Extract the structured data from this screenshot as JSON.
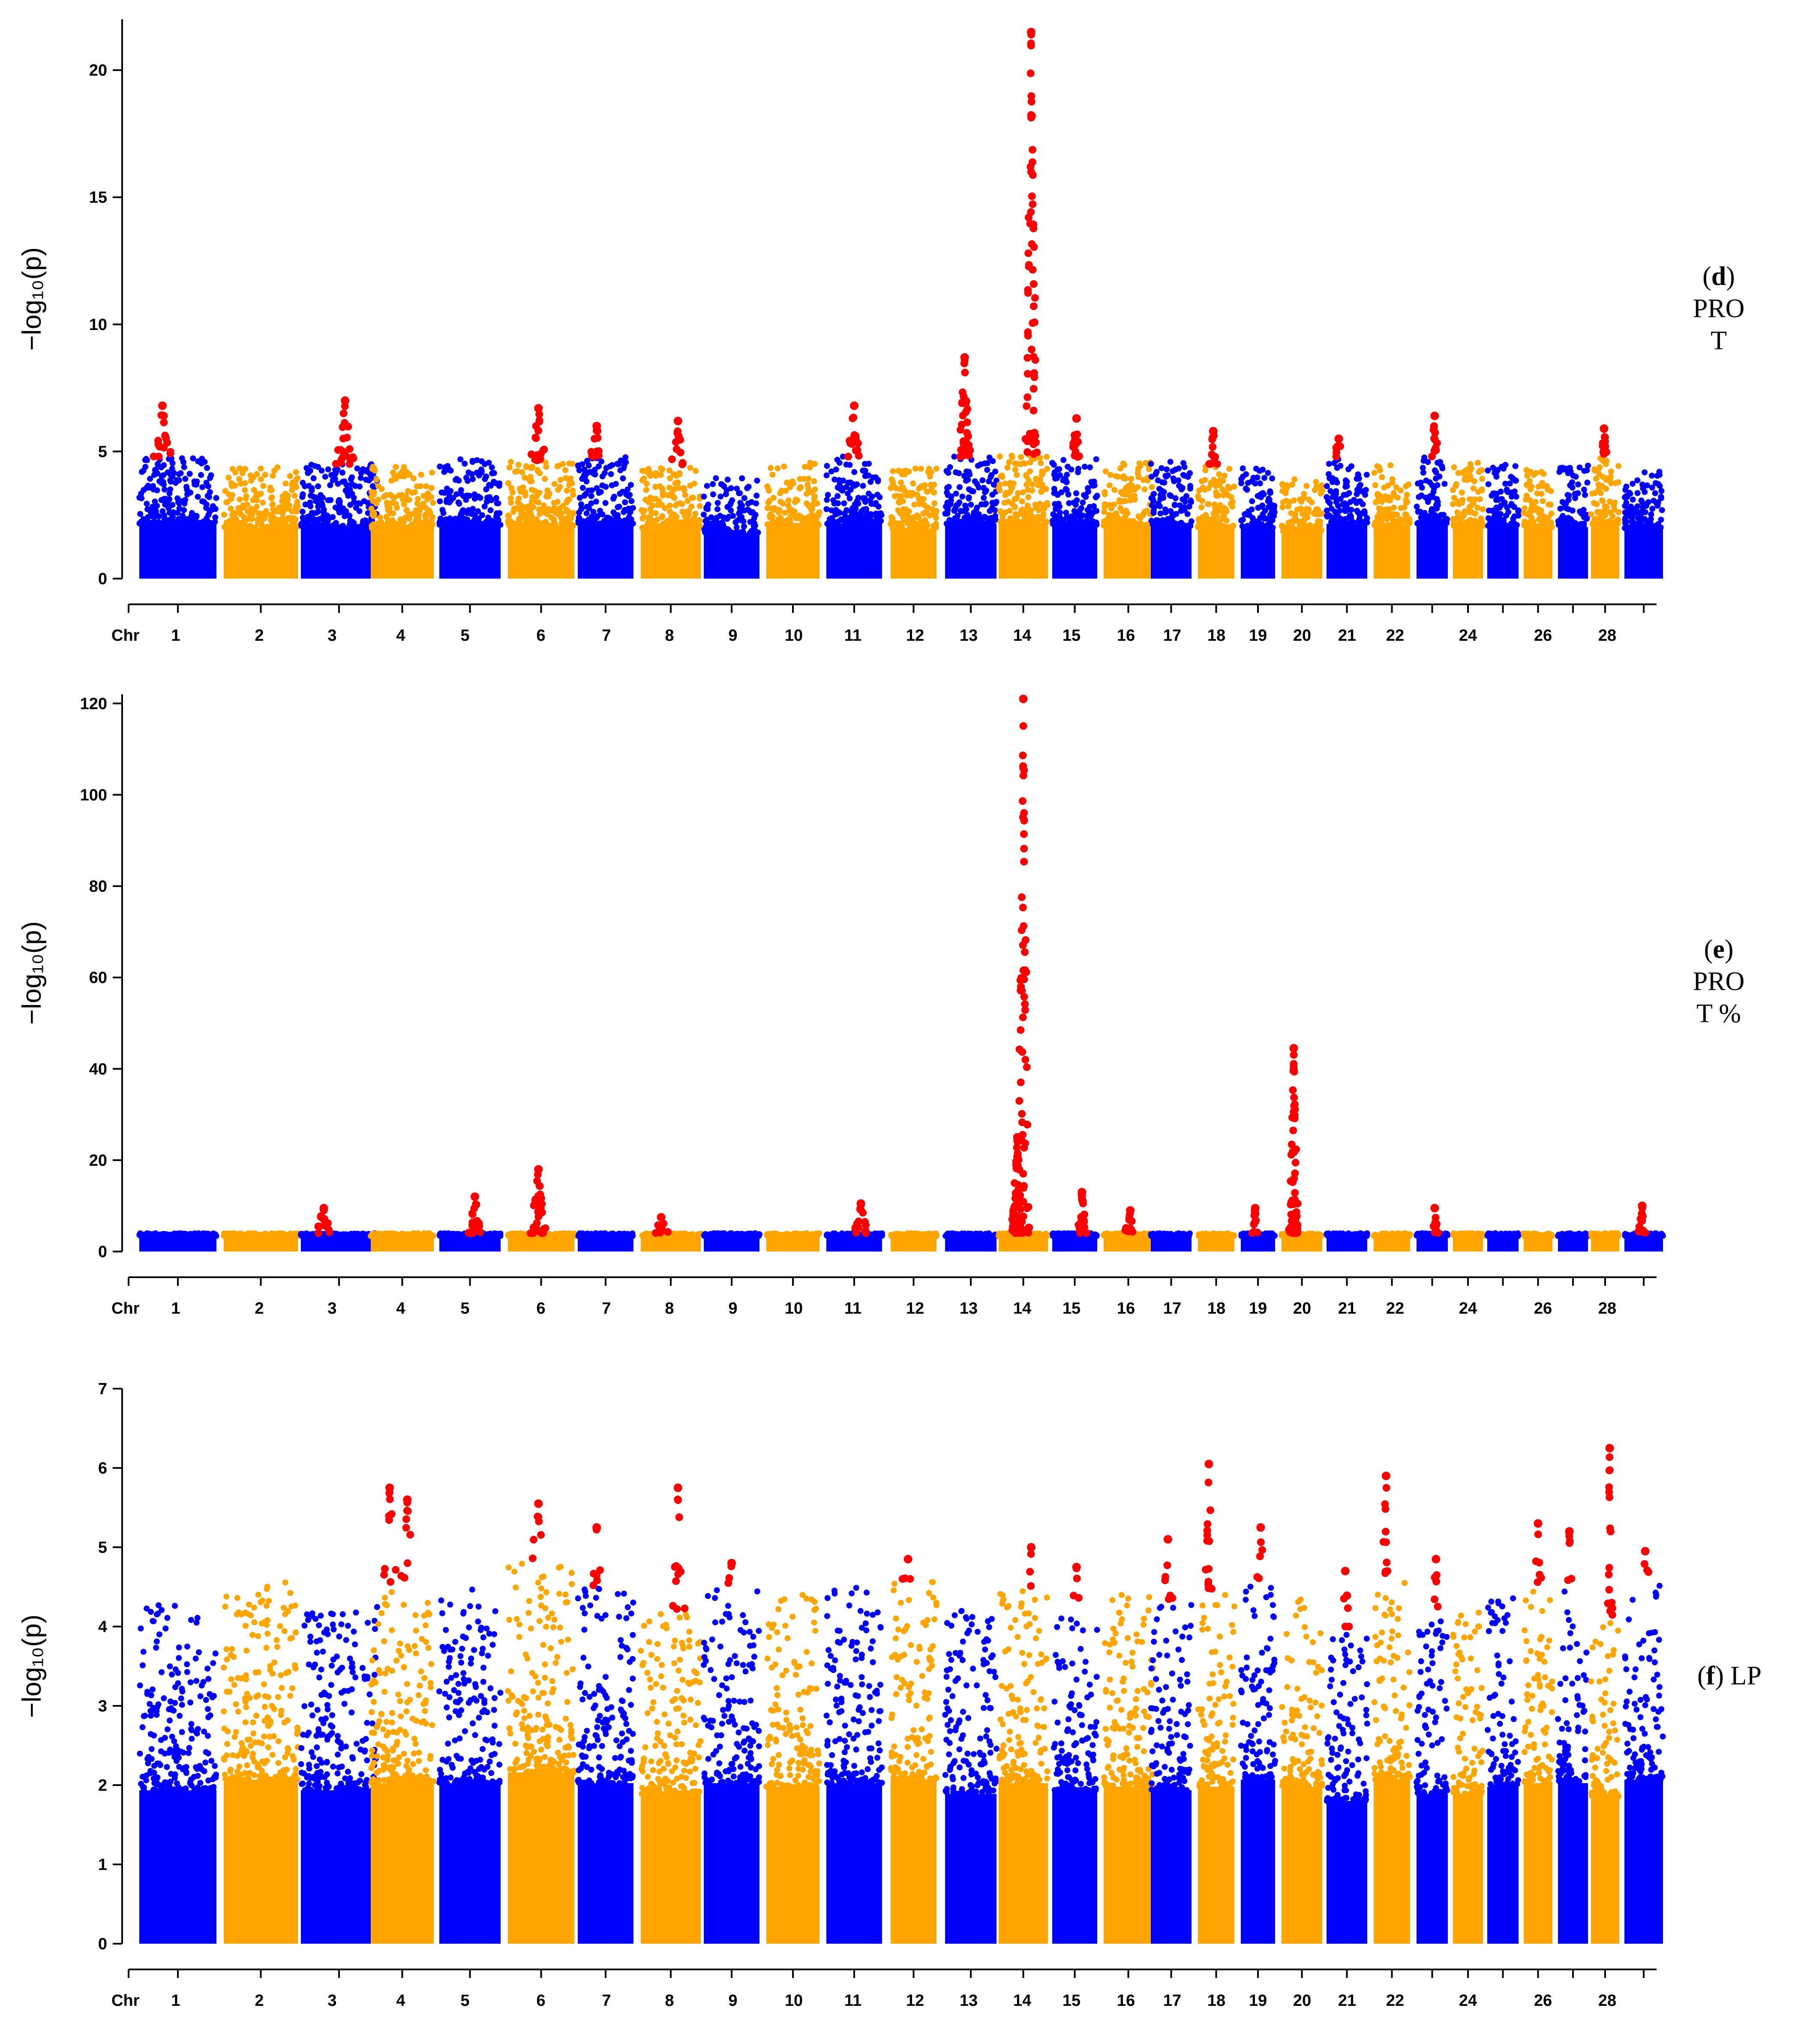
{
  "chart_data": [
    {
      "type": "scatter",
      "subtype": "manhattan",
      "panel": "d",
      "label_letter": "d",
      "label_lines": [
        "PRO",
        "T"
      ],
      "ylabel": "−log₁₀(p)",
      "xlabel_prefix": "Chr",
      "ylim": [
        0,
        22
      ],
      "yticks": [
        0,
        5,
        10,
        15,
        20
      ],
      "xtick_labels": [
        "1",
        "2",
        "3",
        "4",
        "5",
        "6",
        "7",
        "8",
        "9",
        "10",
        "11",
        "12",
        "13",
        "14",
        "15",
        "16",
        "17",
        "18",
        "19",
        "20",
        "21",
        "22",
        "24",
        "26",
        "28"
      ],
      "chromosome_max": [
        4.8,
        4.4,
        4.5,
        4.4,
        4.7,
        4.6,
        4.8,
        4.4,
        4.0,
        4.6,
        4.8,
        4.4,
        4.8,
        4.9,
        4.7,
        4.6,
        4.6,
        4.5,
        4.4,
        4.1,
        4.8,
        4.5,
        4.8,
        4.6,
        4.6,
        4.5,
        4.5,
        4.8,
        4.4
      ],
      "significant_peaks": [
        {
          "chr": 1,
          "value": 6.8
        },
        {
          "chr": 3,
          "value": 7.0
        },
        {
          "chr": 6,
          "value": 6.7
        },
        {
          "chr": 7,
          "value": 6.0
        },
        {
          "chr": 8,
          "value": 6.2
        },
        {
          "chr": 11,
          "value": 6.8
        },
        {
          "chr": 13,
          "value": 8.7
        },
        {
          "chr": 14,
          "value": 21.5
        },
        {
          "chr": 15,
          "value": 6.3
        },
        {
          "chr": 18,
          "value": 5.8
        },
        {
          "chr": 21,
          "value": 5.5
        },
        {
          "chr": 23,
          "value": 6.4
        },
        {
          "chr": 28,
          "value": 5.9
        }
      ],
      "colors": {
        "odd": "#0000FF",
        "even": "#FFA500",
        "significant": "#FF0000"
      }
    },
    {
      "type": "scatter",
      "subtype": "manhattan",
      "panel": "e",
      "label_letter": "e",
      "label_lines": [
        "PRO",
        "T %"
      ],
      "ylabel": "−log₁₀(p)",
      "xlabel_prefix": "Chr",
      "ylim": [
        0,
        122
      ],
      "yticks": [
        0,
        20,
        40,
        60,
        80,
        100,
        120
      ],
      "xtick_labels": [
        "1",
        "2",
        "3",
        "4",
        "5",
        "6",
        "7",
        "8",
        "9",
        "10",
        "11",
        "12",
        "13",
        "14",
        "15",
        "16",
        "17",
        "18",
        "19",
        "20",
        "21",
        "22",
        "24",
        "26",
        "28"
      ],
      "chromosome_max": [
        4,
        4,
        4,
        4,
        4,
        4,
        4,
        4,
        4,
        4,
        4,
        4,
        4,
        4,
        4,
        4,
        4,
        4,
        4,
        4,
        4,
        4,
        4,
        4,
        4,
        4,
        4,
        4,
        4
      ],
      "significant_peaks": [
        {
          "chr": 3,
          "value": 9.5
        },
        {
          "chr": 5,
          "value": 12.0
        },
        {
          "chr": 6,
          "value": 18.0
        },
        {
          "chr": 8,
          "value": 7.5
        },
        {
          "chr": 11,
          "value": 10.5
        },
        {
          "chr": 14,
          "value": 121.0
        },
        {
          "chr": 14,
          "value": 25.0
        },
        {
          "chr": 15,
          "value": 13.0
        },
        {
          "chr": 16,
          "value": 9.0
        },
        {
          "chr": 19,
          "value": 9.5
        },
        {
          "chr": 20,
          "value": 44.5
        },
        {
          "chr": 23,
          "value": 9.5
        },
        {
          "chr": 29,
          "value": 10.0
        }
      ],
      "colors": {
        "odd": "#0000FF",
        "even": "#FFA500",
        "significant": "#FF0000"
      }
    },
    {
      "type": "scatter",
      "subtype": "manhattan",
      "panel": "f",
      "label_letter": "f",
      "label_lines": [
        "LP"
      ],
      "ylabel": "−log₁₀(p)",
      "xlabel_prefix": "Chr",
      "ylim": [
        0,
        7
      ],
      "yticks": [
        0,
        1,
        2,
        3,
        4,
        5,
        6,
        7
      ],
      "xtick_labels": [
        "1",
        "2",
        "3",
        "4",
        "5",
        "6",
        "7",
        "8",
        "9",
        "10",
        "11",
        "12",
        "13",
        "14",
        "15",
        "16",
        "17",
        "18",
        "19",
        "20",
        "21",
        "22",
        "24",
        "26",
        "28"
      ],
      "chromosome_max": [
        4.3,
        4.6,
        4.3,
        4.5,
        4.5,
        4.8,
        4.5,
        4.2,
        4.5,
        4.4,
        4.5,
        4.6,
        4.2,
        4.5,
        4.3,
        4.4,
        4.3,
        4.4,
        4.6,
        4.4,
        4.0,
        4.6,
        4.2,
        4.2,
        4.4,
        4.5,
        4.5,
        4.1,
        4.6
      ],
      "significant_peaks": [
        {
          "chr": 4,
          "value": 5.75
        },
        {
          "chr": 4,
          "value": 5.6
        },
        {
          "chr": 6,
          "value": 5.55
        },
        {
          "chr": 7,
          "value": 5.25
        },
        {
          "chr": 8,
          "value": 5.75
        },
        {
          "chr": 9,
          "value": 4.8
        },
        {
          "chr": 12,
          "value": 4.85
        },
        {
          "chr": 14,
          "value": 5.0
        },
        {
          "chr": 15,
          "value": 4.75
        },
        {
          "chr": 17,
          "value": 5.1
        },
        {
          "chr": 18,
          "value": 6.05
        },
        {
          "chr": 19,
          "value": 5.25
        },
        {
          "chr": 21,
          "value": 4.7
        },
        {
          "chr": 22,
          "value": 5.9
        },
        {
          "chr": 23,
          "value": 4.85
        },
        {
          "chr": 26,
          "value": 5.3
        },
        {
          "chr": 27,
          "value": 5.2
        },
        {
          "chr": 28,
          "value": 6.25
        },
        {
          "chr": 29,
          "value": 4.95
        }
      ],
      "colors": {
        "odd": "#0000FF",
        "even": "#FFA500",
        "significant": "#FF0000"
      }
    }
  ]
}
